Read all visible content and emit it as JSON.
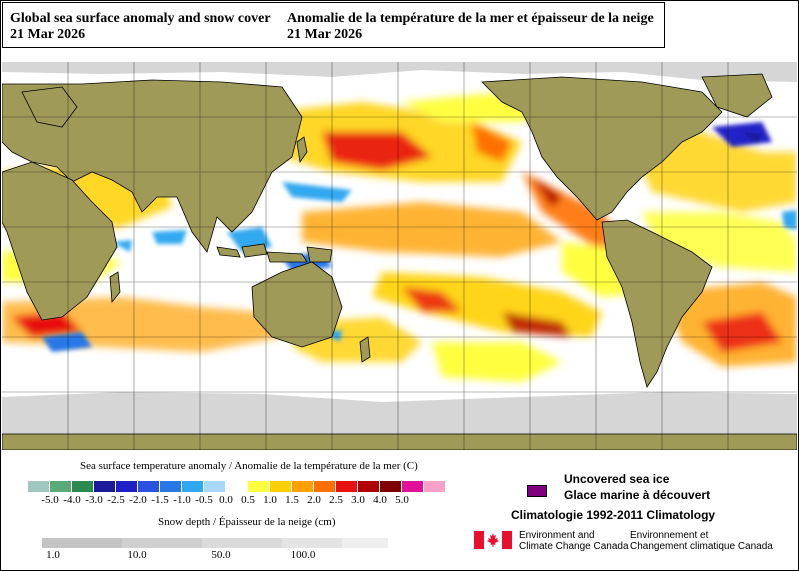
{
  "header": {
    "title_en": "Global sea surface anomaly and snow cover",
    "date_en": "21 Mar 2026",
    "title_fr": "Anomalie de la température de la mer et épaisseur de la neige",
    "date_fr": "21 Mar 2026"
  },
  "sst_legend": {
    "title": "Sea surface temperature anomaly / Anomalie de la température de la mer (C)",
    "ticks": [
      "-5.0",
      "-4.0",
      "-3.0",
      "-2.5",
      "-2.0",
      "-1.5",
      "-1.0",
      "-0.5",
      "0.0",
      "0.5",
      "1.0",
      "1.5",
      "2.0",
      "2.5",
      "3.0",
      "4.0",
      "5.0"
    ],
    "colors": [
      "#a0c8c0",
      "#5aaa78",
      "#2a8a50",
      "#1a1a9a",
      "#2020c8",
      "#2a52e0",
      "#2878e8",
      "#30a8f0",
      "#a8d8f8",
      "#ffffff",
      "#ffff40",
      "#ffd000",
      "#ffa000",
      "#ff7000",
      "#e81010",
      "#b00000",
      "#800000",
      "#e0109a",
      "#f8a0c8"
    ]
  },
  "snow_legend": {
    "title": "Snow depth / Épaisseur de la neige (cm)",
    "ticks": [
      "1.0",
      "10.0",
      "50.0",
      "100.0"
    ],
    "colors": [
      "#c4c4c4",
      "#cfcfcf",
      "#dadada",
      "#e4e4e4",
      "#eeeeee"
    ]
  },
  "ice": {
    "label_en": "Uncovered sea ice",
    "label_fr": "Glace marine à découvert",
    "color": "#800080"
  },
  "climatology": "Climatologie 1992-2011 Climatology",
  "agency": {
    "en_line1": "Environment and",
    "en_line2": "Climate Change Canada",
    "fr_line1": "Environnement et",
    "fr_line2": "Changement climatique Canada"
  },
  "map_colors": {
    "land": "#a09a58",
    "snow": "#d6d6d6",
    "ocean": "#ffffff"
  }
}
